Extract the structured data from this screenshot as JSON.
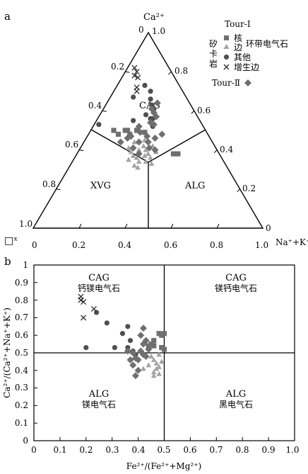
{
  "chart_data": [
    {
      "type": "ternary",
      "panel_label": "a",
      "apex_labels": {
        "top": "Ca²⁺",
        "bottom_left": "□ˣ",
        "bottom_right": "Na⁺+K⁺"
      },
      "bottom_ticks": [
        "0",
        "0.2",
        "0.4",
        "0.6",
        "0.8",
        "1.0"
      ],
      "left_ticks": [
        "0.2",
        "0.4",
        "0.6",
        "0.8",
        "1.0"
      ],
      "right_ticks": [
        "0",
        "0.2",
        "0.4",
        "0.6",
        "0.8",
        "1.0"
      ],
      "top_zero_label": "0",
      "field_labels": [
        "CAG",
        "XVG",
        "ALG"
      ],
      "legend": {
        "group1_title": "Tour-Ⅰ",
        "rock_label": "矽卡岩",
        "items": [
          {
            "label": "核",
            "marker": "square",
            "color": "#6f6f6f"
          },
          {
            "label": "边",
            "marker": "triangle",
            "color": "#a3a3a3"
          },
          {
            "label": "其他",
            "marker": "circle",
            "color": "#4f4f4f"
          },
          {
            "label": "增生边",
            "marker": "cross",
            "color": "#2a2a2a"
          }
        ],
        "bracket_label": "环带电气石",
        "group2_title": "Tour-Ⅱ",
        "group2_marker": "diamond",
        "group2_color": "#6f6f6f"
      },
      "series": [
        {
          "name": "核",
          "marker": "square",
          "points": [
            [
              0.1,
              0.5
            ],
            [
              0.15,
              0.5
            ],
            [
              0.16,
              0.5
            ],
            [
              0.18,
              0.48
            ],
            [
              0.13,
              0.48
            ],
            [
              0.2,
              0.5
            ],
            [
              0.42,
              0.38
            ],
            [
              0.24,
              0.49
            ],
            [
              0.44,
              0.38
            ]
          ]
        },
        {
          "name": "边",
          "marker": "triangle",
          "points": [
            [
              0.21,
              0.41
            ],
            [
              0.23,
              0.39
            ],
            [
              0.25,
              0.37
            ],
            [
              0.27,
              0.36
            ],
            [
              0.29,
              0.34
            ],
            [
              0.31,
              0.38
            ],
            [
              0.26,
              0.4
            ],
            [
              0.28,
              0.32
            ],
            [
              0.3,
              0.37
            ],
            [
              0.33,
              0.36
            ],
            [
              0.32,
              0.34
            ],
            [
              0.35,
              0.33
            ],
            [
              0.24,
              0.35
            ],
            [
              0.3,
              0.31
            ],
            [
              0.22,
              0.44
            ],
            [
              0.27,
              0.42
            ],
            [
              0.29,
              0.4
            ],
            [
              0.26,
              0.45
            ],
            [
              0.31,
              0.42
            ],
            [
              0.34,
              0.39
            ]
          ]
        },
        {
          "name": "其他",
          "marker": "circle",
          "points": [
            [
              0.12,
              0.73
            ],
            [
              0.16,
              0.7
            ],
            [
              0.18,
              0.66
            ],
            [
              0.2,
              0.63
            ],
            [
              0.22,
              0.61
            ],
            [
              0.2,
              0.58
            ],
            [
              0.24,
              0.56
            ],
            [
              0.16,
              0.55
            ],
            [
              0.1,
              0.67
            ],
            [
              0.02,
              0.53
            ],
            [
              0.26,
              0.52
            ],
            [
              0.23,
              0.56
            ]
          ]
        },
        {
          "name": "增生边",
          "marker": "cross",
          "points": [
            [
              0.03,
              0.82
            ],
            [
              0.05,
              0.8
            ],
            [
              0.05,
              0.78
            ],
            [
              0.07,
              0.77
            ],
            [
              0.09,
              0.72
            ],
            [
              0.1,
              0.7
            ]
          ]
        },
        {
          "name": "Tour-Ⅱ",
          "marker": "diamond",
          "points": [
            [
              0.22,
              0.64
            ],
            [
              0.21,
              0.61
            ],
            [
              0.23,
              0.59
            ],
            [
              0.25,
              0.57
            ],
            [
              0.24,
              0.54
            ],
            [
              0.26,
              0.53
            ],
            [
              0.2,
              0.52
            ],
            [
              0.22,
              0.49
            ],
            [
              0.26,
              0.47
            ],
            [
              0.28,
              0.44
            ],
            [
              0.24,
              0.44
            ],
            [
              0.3,
              0.41
            ],
            [
              0.23,
              0.41
            ],
            [
              0.18,
              0.46
            ],
            [
              0.27,
              0.38
            ],
            [
              0.33,
              0.4
            ],
            [
              0.32,
              0.48
            ],
            [
              0.19,
              0.47
            ],
            [
              0.3,
              0.46
            ],
            [
              0.16,
              0.44
            ]
          ]
        }
      ]
    },
    {
      "type": "scatter",
      "panel_label": "b",
      "xlabel": "Fe²⁺/(Fe²⁺+Mg²⁺)",
      "ylabel": "Ca²⁺/(Ca²⁺+Na⁺+K⁺)",
      "xlim": [
        0,
        1
      ],
      "ylim": [
        0,
        1
      ],
      "xticks": [
        "0",
        "0.1",
        "0.2",
        "0.3",
        "0.4",
        "0.5",
        "0.6",
        "0.7",
        "0.8",
        "0.9",
        "1.0"
      ],
      "yticks": [
        "0",
        "0.1",
        "0.2",
        "0.3",
        "0.4",
        "0.5",
        "0.6",
        "0.7",
        "0.8",
        "0.9",
        "1"
      ],
      "divider_x": 0.5,
      "divider_y": 0.5,
      "quadrants": [
        {
          "name": "CAG",
          "mineral": "钙镁电气石"
        },
        {
          "name": "CAG",
          "mineral": "镁钙电气石"
        },
        {
          "name": "ALG",
          "mineral": "镁电气石"
        },
        {
          "name": "ALG",
          "mineral": "黑电气石"
        }
      ],
      "series": [
        {
          "name": "核",
          "marker": "square",
          "points": [
            [
              0.48,
              0.61
            ],
            [
              0.5,
              0.61
            ],
            [
              0.49,
              0.6
            ],
            [
              0.46,
              0.57
            ],
            [
              0.45,
              0.55
            ],
            [
              0.44,
              0.54
            ],
            [
              0.46,
              0.54
            ],
            [
              0.49,
              0.53
            ],
            [
              0.5,
              0.52
            ]
          ]
        },
        {
          "name": "边",
          "marker": "triangle",
          "points": [
            [
              0.45,
              0.48
            ],
            [
              0.46,
              0.46
            ],
            [
              0.47,
              0.44
            ],
            [
              0.48,
              0.42
            ],
            [
              0.49,
              0.45
            ],
            [
              0.47,
              0.41
            ],
            [
              0.46,
              0.39
            ],
            [
              0.48,
              0.49
            ],
            [
              0.44,
              0.43
            ],
            [
              0.42,
              0.41
            ],
            [
              0.46,
              0.37
            ],
            [
              0.48,
              0.38
            ]
          ]
        },
        {
          "name": "其他",
          "marker": "circle",
          "points": [
            [
              0.2,
              0.53
            ],
            [
              0.24,
              0.73
            ],
            [
              0.28,
              0.67
            ],
            [
              0.31,
              0.53
            ],
            [
              0.34,
              0.61
            ],
            [
              0.36,
              0.65
            ],
            [
              0.37,
              0.57
            ],
            [
              0.36,
              0.53
            ],
            [
              0.38,
              0.51
            ],
            [
              0.39,
              0.49
            ]
          ]
        },
        {
          "name": "增生边",
          "marker": "cross",
          "points": [
            [
              0.18,
              0.8
            ],
            [
              0.18,
              0.82
            ],
            [
              0.19,
              0.79
            ],
            [
              0.23,
              0.75
            ],
            [
              0.19,
              0.7
            ]
          ]
        },
        {
          "name": "Tour-Ⅱ",
          "marker": "diamond",
          "points": [
            [
              0.42,
              0.64
            ],
            [
              0.41,
              0.6
            ],
            [
              0.43,
              0.57
            ],
            [
              0.44,
              0.52
            ],
            [
              0.42,
              0.49
            ],
            [
              0.41,
              0.51
            ],
            [
              0.38,
              0.5
            ],
            [
              0.39,
              0.47
            ],
            [
              0.4,
              0.46
            ],
            [
              0.38,
              0.43
            ],
            [
              0.4,
              0.4
            ],
            [
              0.39,
              0.37
            ],
            [
              0.36,
              0.51
            ],
            [
              0.37,
              0.46
            ],
            [
              0.43,
              0.48
            ],
            [
              0.42,
              0.55
            ]
          ]
        }
      ]
    }
  ]
}
